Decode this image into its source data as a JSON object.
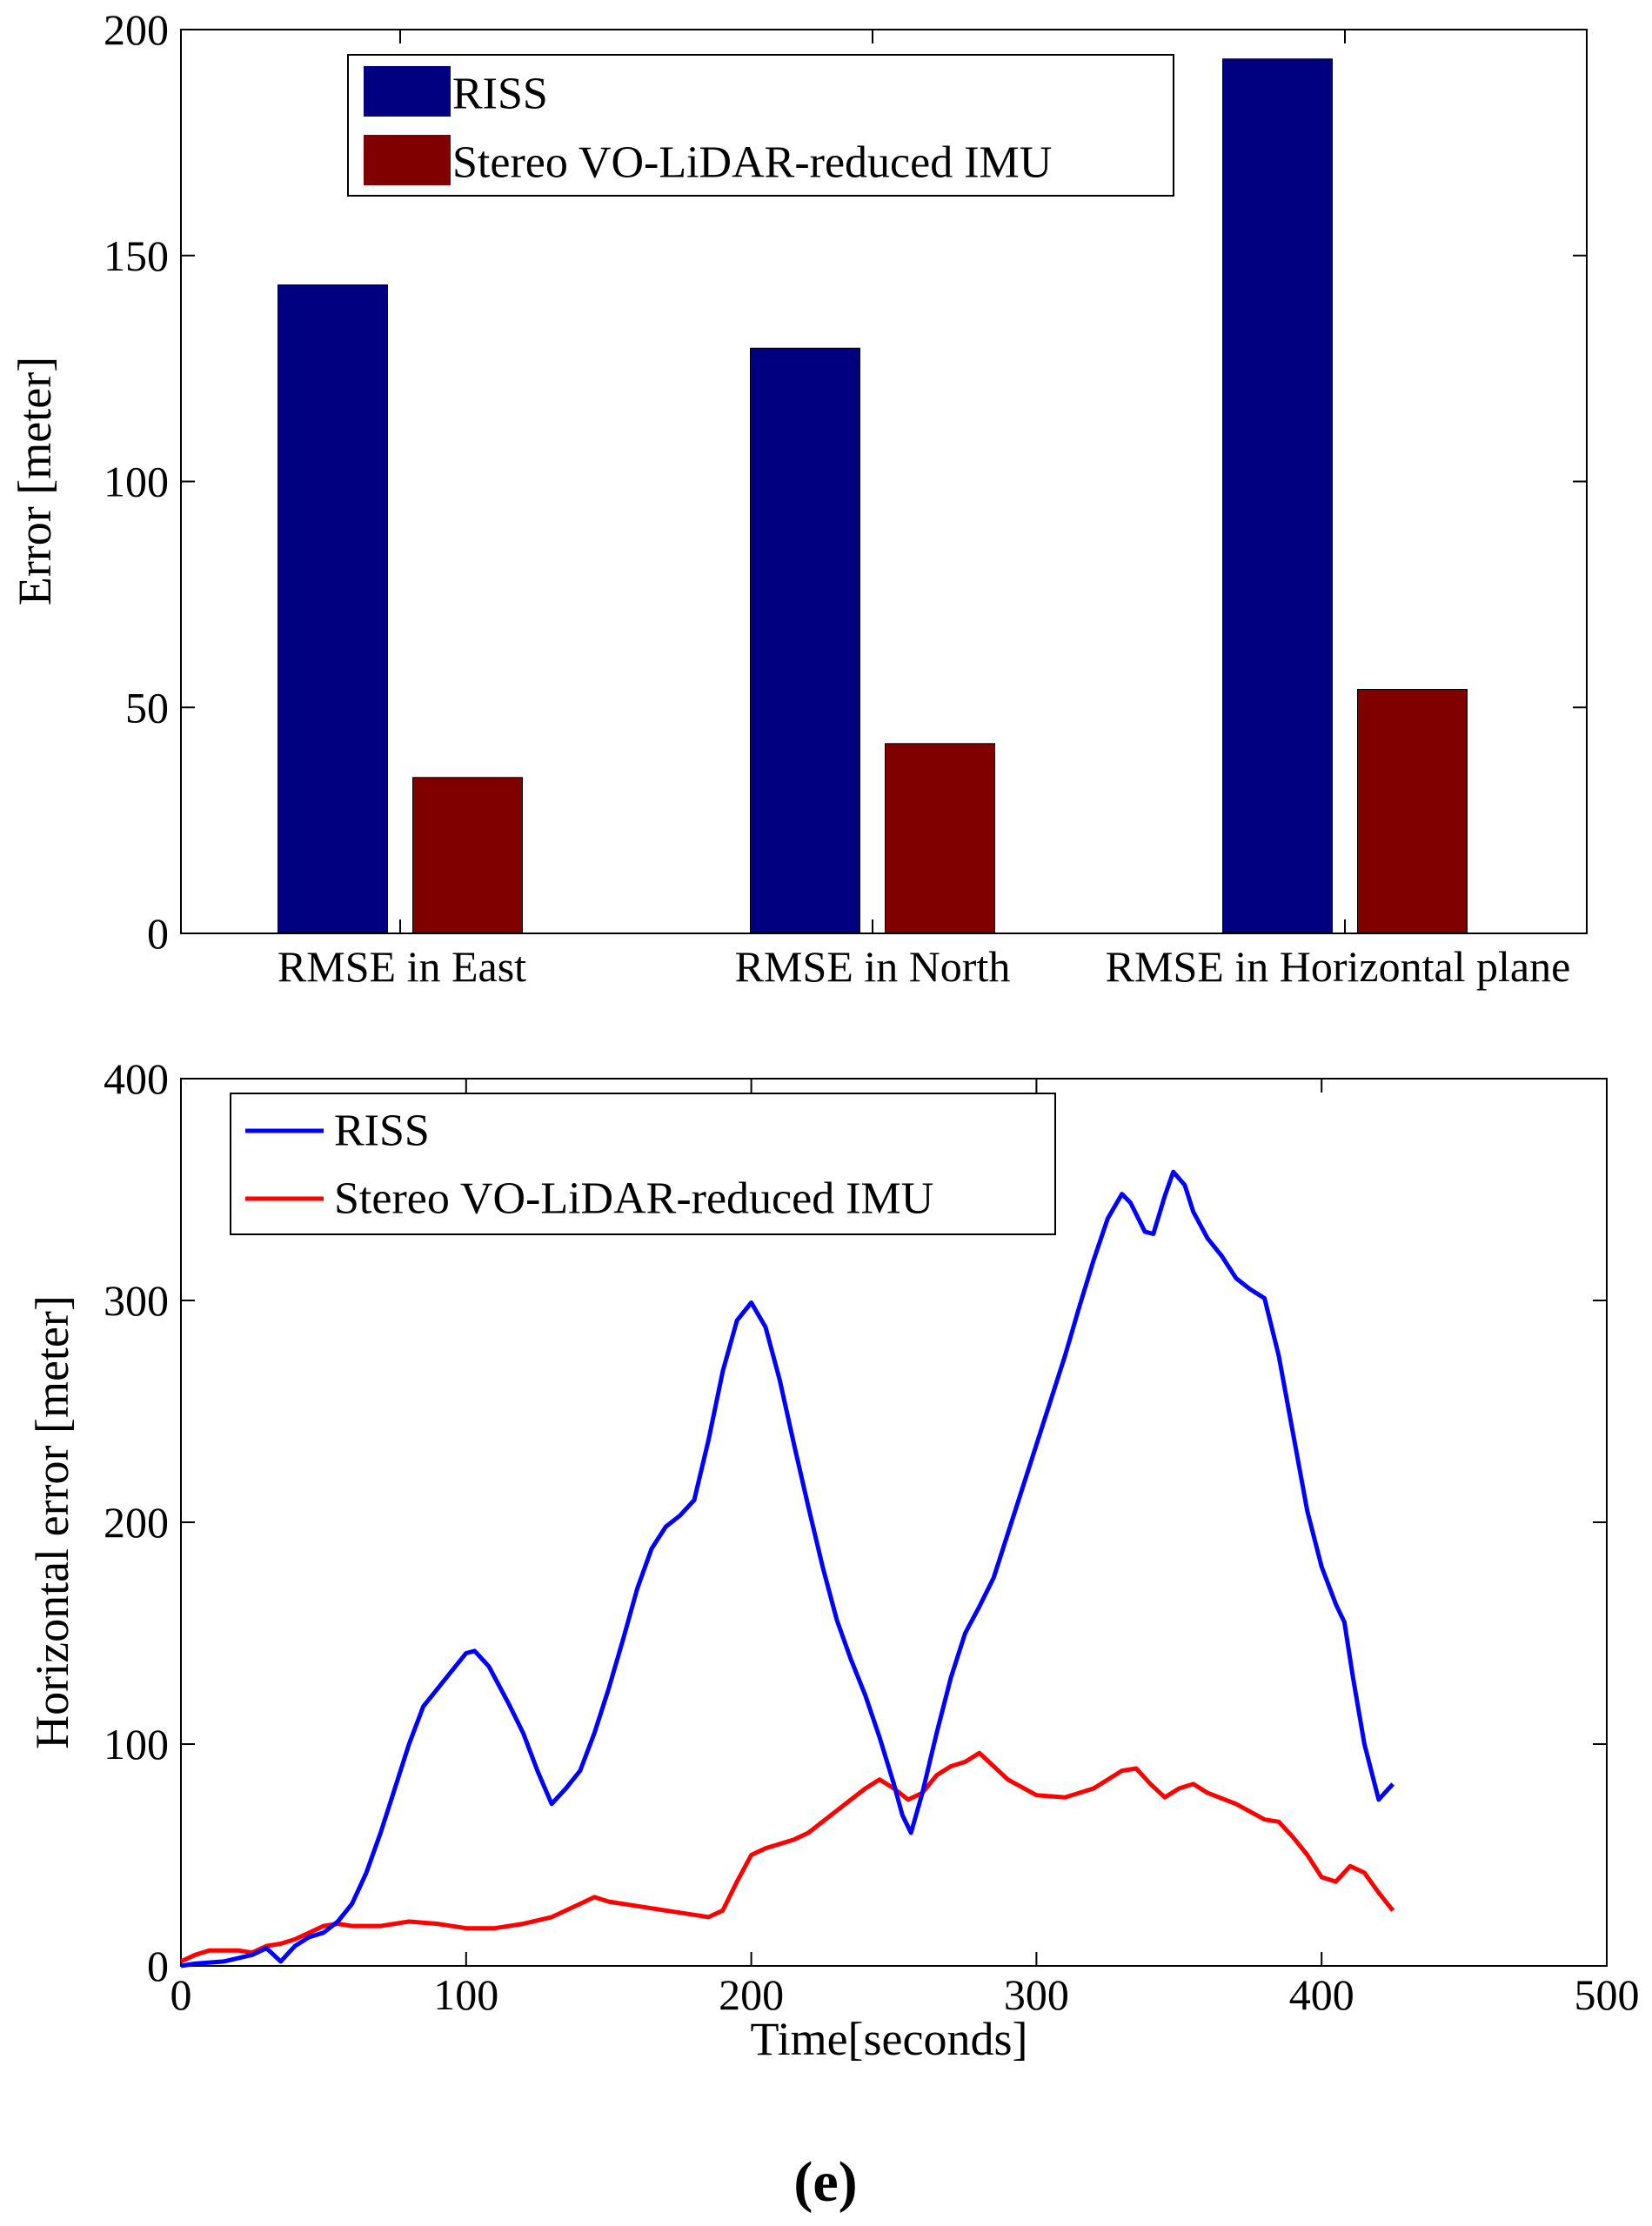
{
  "figure_caption": "(e)",
  "chart_data": [
    {
      "type": "bar",
      "title": "",
      "xlabel": "",
      "ylabel": "Error [meter]",
      "ylim": [
        0,
        200
      ],
      "yticks": [
        0,
        50,
        100,
        150,
        200
      ],
      "ytick_labels": [
        "0",
        "50",
        "100",
        "150",
        "200"
      ],
      "categories": [
        "RMSE in East",
        "RMSE in North",
        "RMSE in Horizontal plane"
      ],
      "series": [
        {
          "name": "RISS",
          "color": "#000080",
          "values": [
            143.5,
            129.5,
            193.5
          ]
        },
        {
          "name": "Stereo VO-LiDAR-reduced IMU",
          "color": "#800000",
          "values": [
            34.5,
            42,
            54
          ]
        }
      ],
      "legend_position": "top-left",
      "grid": false
    },
    {
      "type": "line",
      "title": "",
      "xlabel": "Time[seconds]",
      "ylabel": "Horizontal error [meter]",
      "xlim": [
        0,
        500
      ],
      "ylim": [
        0,
        400
      ],
      "xticks": [
        0,
        100,
        200,
        300,
        400,
        500
      ],
      "xtick_labels": [
        "0",
        "100",
        "200",
        "300",
        "400",
        "500"
      ],
      "yticks": [
        0,
        100,
        200,
        300,
        400
      ],
      "ytick_labels": [
        "0",
        "100",
        "200",
        "300",
        "400"
      ],
      "legend_position": "top-left",
      "grid": false,
      "series": [
        {
          "name": "RISS",
          "color": "#0000ff",
          "x": [
            0,
            5,
            15,
            25,
            30,
            35,
            40,
            45,
            50,
            55,
            60,
            65,
            70,
            75,
            80,
            85,
            90,
            95,
            100,
            103,
            108,
            115,
            120,
            125,
            130,
            135,
            140,
            145,
            150,
            155,
            160,
            165,
            170,
            175,
            180,
            185,
            190,
            195,
            200,
            205,
            210,
            215,
            220,
            225,
            230,
            235,
            240,
            245,
            250,
            253,
            256,
            260,
            265,
            270,
            275,
            280,
            285,
            290,
            295,
            300,
            305,
            310,
            315,
            320,
            325,
            330,
            333,
            338,
            341,
            345,
            348,
            352,
            355,
            360,
            365,
            370,
            375,
            380,
            385,
            390,
            395,
            400,
            405,
            408,
            411,
            415,
            420,
            425
          ],
          "y": [
            0,
            1,
            2,
            5,
            8,
            2,
            9,
            13,
            15,
            20,
            28,
            42,
            60,
            80,
            100,
            117,
            125,
            133,
            141,
            142,
            135,
            118,
            105,
            88,
            73,
            80,
            88,
            105,
            125,
            147,
            170,
            188,
            198,
            203,
            210,
            237,
            268,
            291,
            299,
            288,
            264,
            235,
            207,
            180,
            156,
            138,
            122,
            103,
            82,
            68,
            60,
            78,
            105,
            130,
            150,
            162,
            175,
            195,
            215,
            235,
            255,
            275,
            297,
            318,
            337,
            348,
            344,
            331,
            330,
            347,
            358,
            352,
            340,
            328,
            320,
            310,
            305,
            301,
            275,
            240,
            205,
            180,
            163,
            155,
            130,
            100,
            75,
            82
          ]
        },
        {
          "name": "Stereo VO-LiDAR-reduced IMU",
          "color": "#ff0000",
          "x": [
            0,
            5,
            10,
            15,
            20,
            25,
            30,
            35,
            40,
            45,
            50,
            55,
            60,
            70,
            80,
            90,
            100,
            110,
            120,
            130,
            140,
            145,
            150,
            160,
            170,
            180,
            185,
            190,
            195,
            200,
            205,
            210,
            215,
            220,
            230,
            240,
            245,
            250,
            255,
            260,
            265,
            270,
            275,
            280,
            285,
            290,
            300,
            310,
            320,
            330,
            335,
            340,
            345,
            350,
            355,
            360,
            370,
            380,
            385,
            390,
            395,
            400,
            405,
            410,
            415,
            420,
            425
          ],
          "y": [
            2,
            5,
            7,
            7,
            7,
            6,
            9,
            10,
            12,
            15,
            18,
            19,
            18,
            18,
            20,
            19,
            17,
            17,
            19,
            22,
            28,
            31,
            29,
            27,
            25,
            23,
            22,
            25,
            38,
            50,
            53,
            55,
            57,
            60,
            70,
            80,
            84,
            80,
            75,
            78,
            86,
            90,
            92,
            96,
            90,
            84,
            77,
            76,
            80,
            88,
            89,
            82,
            76,
            80,
            82,
            78,
            73,
            66,
            65,
            58,
            50,
            40,
            38,
            45,
            42,
            33,
            25
          ]
        }
      ]
    }
  ]
}
